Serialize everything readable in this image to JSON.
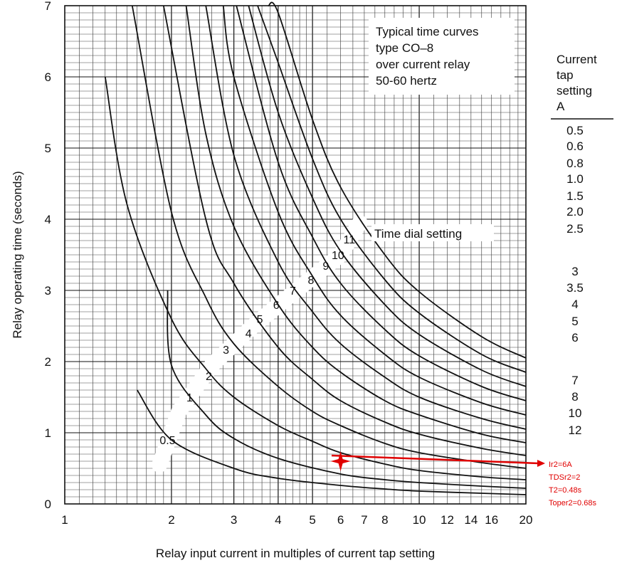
{
  "chart_data": {
    "type": "line",
    "title_lines": [
      "Typical time curves",
      "type CO–8",
      "over current relay",
      "50-60 hertz"
    ],
    "xlabel": "Relay input current in multiples of current tap setting",
    "ylabel": "Relay operating time (seconds)",
    "x_scale": "log",
    "xlim": [
      1,
      20
    ],
    "ylim": [
      0,
      7
    ],
    "x_ticks": [
      1,
      2,
      3,
      4,
      5,
      6,
      7,
      8,
      10,
      12,
      14,
      16,
      20
    ],
    "y_ticks": [
      0,
      1,
      2,
      3,
      4,
      5,
      6,
      7
    ],
    "grid": true,
    "time_dial_label": "Time dial setting",
    "series": [
      {
        "name": "0.5",
        "x": [
          1.6,
          2,
          3,
          4,
          6,
          8,
          10,
          15,
          20
        ],
        "y": [
          1.6,
          0.9,
          0.5,
          0.36,
          0.26,
          0.21,
          0.18,
          0.15,
          0.13
        ]
      },
      {
        "name": "1",
        "x": [
          1.95,
          2,
          2.5,
          3,
          4,
          6,
          8,
          10,
          15,
          20
        ],
        "y": [
          3.0,
          1.95,
          1.25,
          0.92,
          0.64,
          0.42,
          0.34,
          0.3,
          0.25,
          0.22
        ]
      },
      {
        "name": "2",
        "x": [
          1.3,
          1.5,
          2,
          2.5,
          3,
          4,
          5,
          6,
          8,
          10,
          15,
          20
        ],
        "y": [
          6.0,
          4.2,
          2.6,
          1.9,
          1.5,
          1.1,
          0.88,
          0.72,
          0.56,
          0.47,
          0.38,
          0.34
        ]
      },
      {
        "name": "3",
        "x": [
          1.55,
          2,
          2.5,
          3,
          4,
          5,
          6,
          8,
          10,
          15,
          20
        ],
        "y": [
          7.0,
          4.1,
          2.9,
          2.25,
          1.65,
          1.3,
          1.1,
          0.85,
          0.72,
          0.58,
          0.5
        ]
      },
      {
        "name": "4",
        "x": [
          1.9,
          2.5,
          3,
          4,
          5,
          6,
          8,
          10,
          15,
          20
        ],
        "y": [
          7.0,
          4.0,
          3.1,
          2.2,
          1.75,
          1.45,
          1.15,
          0.98,
          0.78,
          0.68
        ]
      },
      {
        "name": "5",
        "x": [
          2.2,
          2.5,
          3,
          4,
          5,
          6,
          8,
          10,
          15,
          20
        ],
        "y": [
          7.0,
          5.2,
          3.9,
          2.8,
          2.2,
          1.85,
          1.45,
          1.25,
          0.98,
          0.86
        ]
      },
      {
        "name": "6",
        "x": [
          2.5,
          3,
          4,
          5,
          6,
          8,
          10,
          15,
          20
        ],
        "y": [
          7.0,
          4.9,
          3.4,
          2.7,
          2.25,
          1.78,
          1.5,
          1.2,
          1.05
        ]
      },
      {
        "name": "7",
        "x": [
          2.8,
          3,
          4,
          5,
          6,
          8,
          10,
          15,
          20
        ],
        "y": [
          7.0,
          6.0,
          4.1,
          3.2,
          2.65,
          2.1,
          1.78,
          1.42,
          1.25
        ]
      },
      {
        "name": "8",
        "x": [
          3.05,
          4,
          5,
          6,
          8,
          10,
          15,
          20
        ],
        "y": [
          7.0,
          4.8,
          3.75,
          3.1,
          2.45,
          2.08,
          1.65,
          1.45
        ]
      },
      {
        "name": "9",
        "x": [
          3.3,
          4,
          5,
          6,
          8,
          10,
          15,
          20
        ],
        "y": [
          7.0,
          5.5,
          4.3,
          3.55,
          2.8,
          2.38,
          1.88,
          1.65
        ]
      },
      {
        "name": "10",
        "x": [
          3.5,
          4,
          5,
          6,
          8,
          10,
          15,
          20
        ],
        "y": [
          7.0,
          6.2,
          4.85,
          4.0,
          3.15,
          2.68,
          2.1,
          1.85
        ]
      },
      {
        "name": "11",
        "x": [
          3.75,
          4,
          5,
          6,
          8,
          10,
          15,
          20
        ],
        "y": [
          7.0,
          6.9,
          5.4,
          4.45,
          3.5,
          2.98,
          2.35,
          2.05
        ]
      }
    ],
    "curve_labels": [
      {
        "text": "0.5",
        "x": 1.95,
        "y": 0.9
      },
      {
        "text": "1",
        "x": 2.25,
        "y": 1.5
      },
      {
        "text": "2",
        "x": 2.55,
        "y": 1.8
      },
      {
        "text": "3",
        "x": 2.85,
        "y": 2.17
      },
      {
        "text": "4",
        "x": 3.3,
        "y": 2.4
      },
      {
        "text": "5",
        "x": 3.55,
        "y": 2.6
      },
      {
        "text": "6",
        "x": 3.95,
        "y": 2.8
      },
      {
        "text": "7",
        "x": 4.4,
        "y": 3.0
      },
      {
        "text": "8",
        "x": 4.95,
        "y": 3.15
      },
      {
        "text": "9",
        "x": 5.45,
        "y": 3.35
      },
      {
        "text": "10",
        "x": 5.9,
        "y": 3.5
      },
      {
        "text": "11",
        "x": 6.35,
        "y": 3.72
      }
    ]
  },
  "tap_table": {
    "header": [
      "Current",
      "tap",
      "setting",
      "A"
    ],
    "values": [
      "0.5",
      "0.6",
      "0.8",
      "1.0",
      "1.5",
      "2.0",
      "2.5",
      "3",
      "3.5",
      "4",
      "5",
      "6",
      "7",
      "8",
      "10",
      "12"
    ]
  },
  "annotation": {
    "color": "#e00000",
    "point": {
      "x": 6,
      "y": 0.6
    },
    "lines": [
      "Ir2=6A",
      "TDSr2=2",
      "T2=0.48s",
      "Toper2=0.68s"
    ]
  }
}
